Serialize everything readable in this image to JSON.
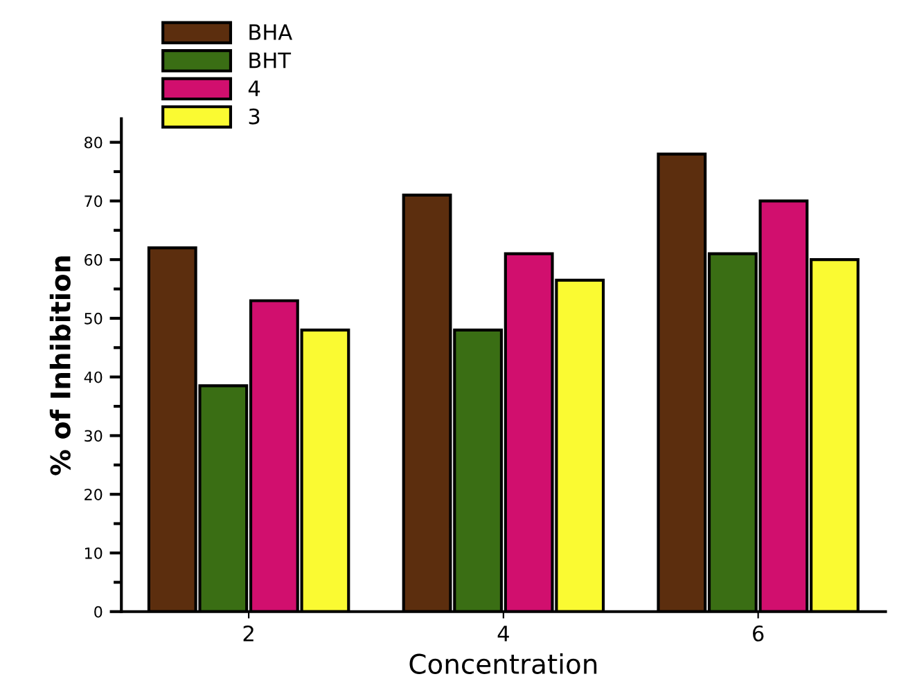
{
  "chart_data": {
    "type": "bar",
    "xlabel": "Concentration",
    "ylabel": "% of Inhibition",
    "categories": [
      "2",
      "4",
      "6"
    ],
    "series": [
      {
        "name": "BHA",
        "color": "#5c2e0e",
        "values": [
          62,
          71,
          78
        ]
      },
      {
        "name": "BHT",
        "color": "#3a6e14",
        "values": [
          38.5,
          48,
          61
        ]
      },
      {
        "name": "4",
        "color": "#d10f6e",
        "values": [
          53,
          61,
          70
        ]
      },
      {
        "name": "3",
        "color": "#fafa32",
        "values": [
          48,
          56.5,
          60
        ]
      }
    ],
    "ylim": [
      0,
      84
    ],
    "yticks": [
      0,
      10,
      20,
      30,
      40,
      50,
      60,
      70,
      80
    ],
    "grid": false,
    "legend": "top left"
  }
}
